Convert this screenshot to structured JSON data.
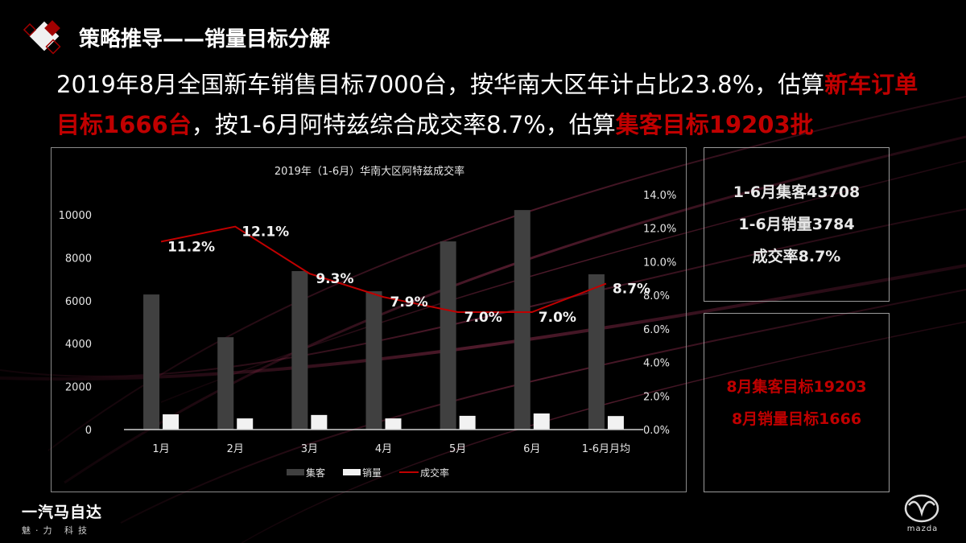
{
  "header": {
    "title": "策略推导——销量目标分解",
    "icon": "diamond-card-icon"
  },
  "summary": {
    "seg1": "2019年8月全国新车销售目标7000台，按华南大区年计占比23.8%，估算",
    "seg2": "新车订单目标1666台",
    "seg3": "，按1-6月阿特兹综合成交率8.7%，估算",
    "seg4": "集客目标19203批"
  },
  "chart_data": {
    "type": "bar",
    "title": "2019年（1-6月）华南大区阿特兹成交率",
    "categories": [
      "1月",
      "2月",
      "3月",
      "4月",
      "5月",
      "6月",
      "1-6月月均"
    ],
    "series": [
      {
        "name": "集客",
        "kind": "bar",
        "axis": "left",
        "color": "#404040",
        "values": [
          6290,
          4300,
          7380,
          6440,
          8760,
          10220,
          7230
        ]
      },
      {
        "name": "销量",
        "kind": "bar",
        "axis": "left",
        "color": "#f2f2f2",
        "values": [
          710,
          520,
          680,
          520,
          640,
          750,
          630
        ]
      },
      {
        "name": "成交率",
        "kind": "line",
        "axis": "right",
        "color": "#c00000",
        "values": [
          11.2,
          12.1,
          9.3,
          7.9,
          7.0,
          7.0,
          8.7
        ],
        "labels": [
          "11.2%",
          "12.1%",
          "9.3%",
          "7.9%",
          "7.0%",
          "7.0%",
          "8.7%"
        ]
      }
    ],
    "left_axis": {
      "ticks": [
        0,
        2000,
        4000,
        6000,
        8000,
        10000
      ],
      "ylim": [
        0,
        10000
      ]
    },
    "right_axis": {
      "ticks": [
        "0.0%",
        "2.0%",
        "4.0%",
        "6.0%",
        "8.0%",
        "10.0%",
        "12.0%",
        "14.0%"
      ],
      "ylim": [
        0,
        14
      ]
    },
    "xlabel": "",
    "ylabel": "",
    "grid": false,
    "legend_position": "bottom",
    "legend": [
      "集客",
      "销量",
      "成交率"
    ]
  },
  "stats_box": {
    "lines": [
      "1-6月集客43708",
      "1-6月销量3784",
      "成交率8.7%"
    ]
  },
  "target_box": {
    "lines": [
      "8月集客目标19203",
      "8月销量目标1666"
    ]
  },
  "footer": {
    "brand_name": "一汽马自达",
    "brand_tagline": "魅·力  科技",
    "logo_text": "mazda"
  },
  "colors": {
    "accent_red": "#c00000",
    "bar_gray": "#404040",
    "bar_white": "#f2f2f2",
    "background": "#000000"
  }
}
